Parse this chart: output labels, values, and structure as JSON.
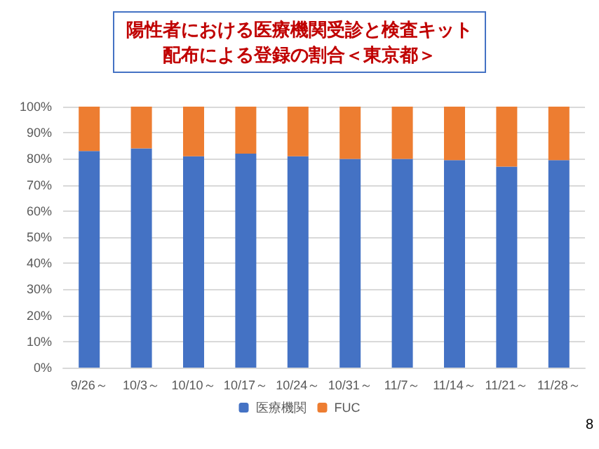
{
  "chart_data": {
    "type": "bar",
    "title": "陽性者における医療機関受診と検査キット配布による登録の割合＜東京都＞",
    "categories": [
      "9/26～",
      "10/3～",
      "10/10～",
      "10/17～",
      "10/24～",
      "10/31～",
      "11/7～",
      "11/14～",
      "11/21～",
      "11/28～"
    ],
    "series": [
      {
        "name": "医療機関",
        "color": "#4472c4",
        "values": [
          83,
          84,
          81,
          82,
          81,
          80,
          80,
          79.5,
          77,
          79.5
        ]
      },
      {
        "name": "FUC",
        "color": "#ed7d31",
        "values": [
          17,
          16,
          19,
          18,
          19,
          20,
          20,
          20.5,
          23,
          20.5
        ]
      }
    ],
    "stacked": true,
    "ylim": [
      0,
      100
    ],
    "yticks": [
      {
        "value": 0,
        "label": "0%"
      },
      {
        "value": 10,
        "label": "10%"
      },
      {
        "value": 20,
        "label": "20%"
      },
      {
        "value": 30,
        "label": "30%"
      },
      {
        "value": 40,
        "label": "40%"
      },
      {
        "value": 50,
        "label": "50%"
      },
      {
        "value": 60,
        "label": "60%"
      },
      {
        "value": 70,
        "label": "70%"
      },
      {
        "value": 80,
        "label": "80%"
      },
      {
        "value": 90,
        "label": "90%"
      },
      {
        "value": 100,
        "label": "100%"
      }
    ],
    "grid": "y",
    "legend": "bottom",
    "annotations": [
      "8"
    ]
  }
}
